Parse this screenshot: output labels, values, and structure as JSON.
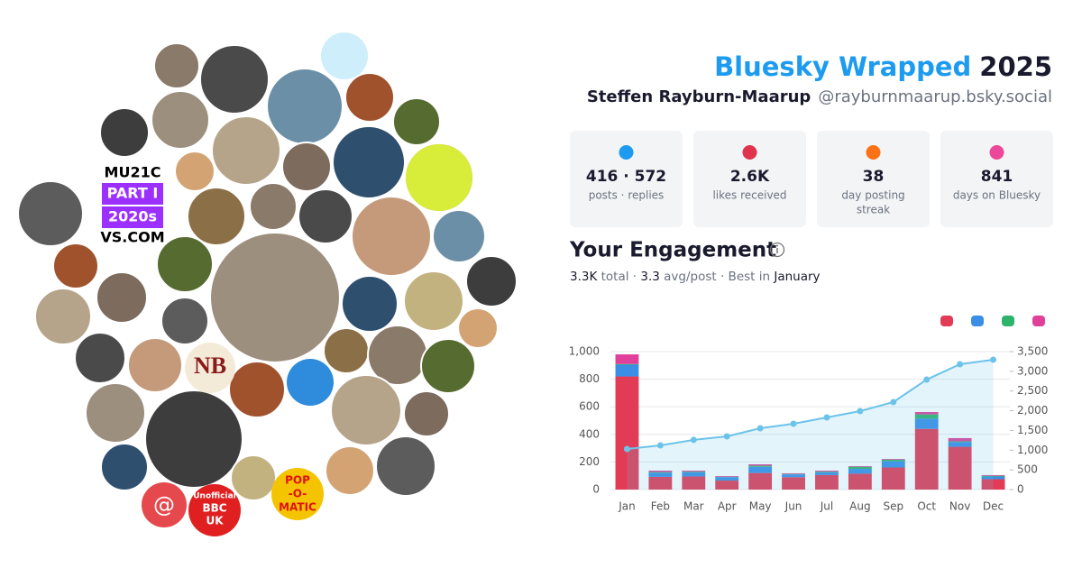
{
  "header": {
    "title": "Bluesky Wrapped",
    "year": "2025",
    "name": "Steffen Rayburn-Maarup",
    "handle": "@rayburnmaarup.bsky.social"
  },
  "stats": [
    {
      "value": "416 · 572",
      "label": "posts · replies",
      "color": "#1d9bf0"
    },
    {
      "value": "2.6K",
      "label": "likes received",
      "color": "#e0334f"
    },
    {
      "value": "38",
      "label": [
        "day posting",
        "streak"
      ],
      "color": "#f97316"
    },
    {
      "value": "841",
      "label": "days on Bluesky",
      "color": "#ec4899"
    }
  ],
  "engagement": {
    "title": "Your Engagement",
    "subtitle": [
      "3.3K",
      " total · ",
      "3.3",
      " avg/post · Best in ",
      "January"
    ]
  },
  "avatars": {
    "mu21c": [
      "MU21C",
      "PART I",
      "2020s",
      "VS.COM"
    ],
    "at": "@",
    "bbc": [
      "Unofficial",
      "BBC",
      "UK"
    ],
    "nb": "NB",
    "pop": [
      "POP",
      "-O-",
      "MATIC"
    ]
  },
  "chart_data": {
    "type": "bar",
    "categories": [
      "Jan",
      "Feb",
      "Mar",
      "Apr",
      "May",
      "Jun",
      "Jul",
      "Aug",
      "Sep",
      "Oct",
      "Nov",
      "Dec"
    ],
    "series": [
      {
        "color": "#e23b56",
        "values": [
          820,
          92,
          95,
          65,
          120,
          90,
          105,
          115,
          160,
          440,
          310,
          75
        ]
      },
      {
        "color": "#3a8ee6",
        "values": [
          85,
          30,
          30,
          25,
          45,
          20,
          20,
          35,
          45,
          75,
          35,
          20
        ]
      },
      {
        "color": "#2fb36a",
        "values": [
          5,
          5,
          5,
          3,
          8,
          3,
          5,
          15,
          12,
          30,
          5,
          5
        ]
      },
      {
        "color": "#e0409a",
        "values": [
          70,
          10,
          7,
          5,
          10,
          5,
          7,
          5,
          5,
          17,
          23,
          5
        ]
      },
      {
        "type": "line",
        "axis": "y2",
        "color": "#6cc3ea",
        "values": [
          1030,
          1120,
          1260,
          1350,
          1555,
          1670,
          1830,
          1990,
          2220,
          2790,
          3180,
          3295
        ]
      }
    ],
    "ylim": [
      0,
      1000
    ],
    "yticks": [
      0,
      200,
      400,
      600,
      800,
      {
        "value": 1000,
        "label": "1,000"
      }
    ],
    "y2lim": [
      0,
      3500
    ],
    "y2ticks": [
      0,
      500,
      {
        "value": 1000,
        "label": "1,000"
      },
      {
        "value": 1500,
        "label": "1,500"
      },
      {
        "value": 2000,
        "label": "2,000"
      },
      {
        "value": 2500,
        "label": "2,500"
      },
      {
        "value": 3000,
        "label": "3,000"
      },
      {
        "value": 3500,
        "label": "3,500"
      }
    ],
    "grid": true
  }
}
